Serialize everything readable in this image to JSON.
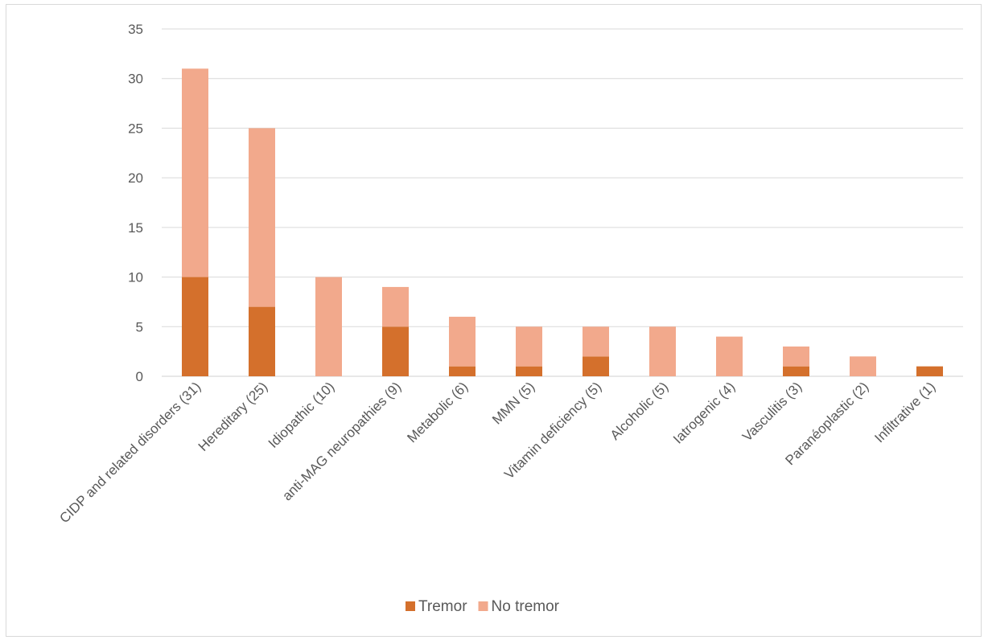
{
  "chart_data": {
    "type": "bar",
    "stacked": true,
    "categories": [
      "CIDP and related disorders (31)",
      "Hereditary (25)",
      "Idiopathic (10)",
      "anti-MAG neuropathies (9)",
      "Metabolic (6)",
      "MMN (5)",
      "Vitamin deficiency (5)",
      "Alcoholic (5)",
      "Iatrogenic (4)",
      "Vasculitis (3)",
      "Paranéoplastic (2)",
      "Infiltrative (1)"
    ],
    "series": [
      {
        "name": "Tremor",
        "color": "#d4702c",
        "values": [
          10,
          7,
          0,
          5,
          1,
          1,
          2,
          0,
          0,
          1,
          0,
          1
        ]
      },
      {
        "name": "No tremor",
        "color": "#f2a98c",
        "values": [
          21,
          18,
          10,
          4,
          5,
          4,
          3,
          5,
          4,
          2,
          2,
          0
        ]
      }
    ],
    "yticks": [
      0,
      5,
      10,
      15,
      20,
      25,
      30,
      35
    ],
    "ylim": [
      0,
      35
    ],
    "grid": true,
    "legend_position": "bottom",
    "title": "",
    "xlabel": "",
    "ylabel": ""
  }
}
